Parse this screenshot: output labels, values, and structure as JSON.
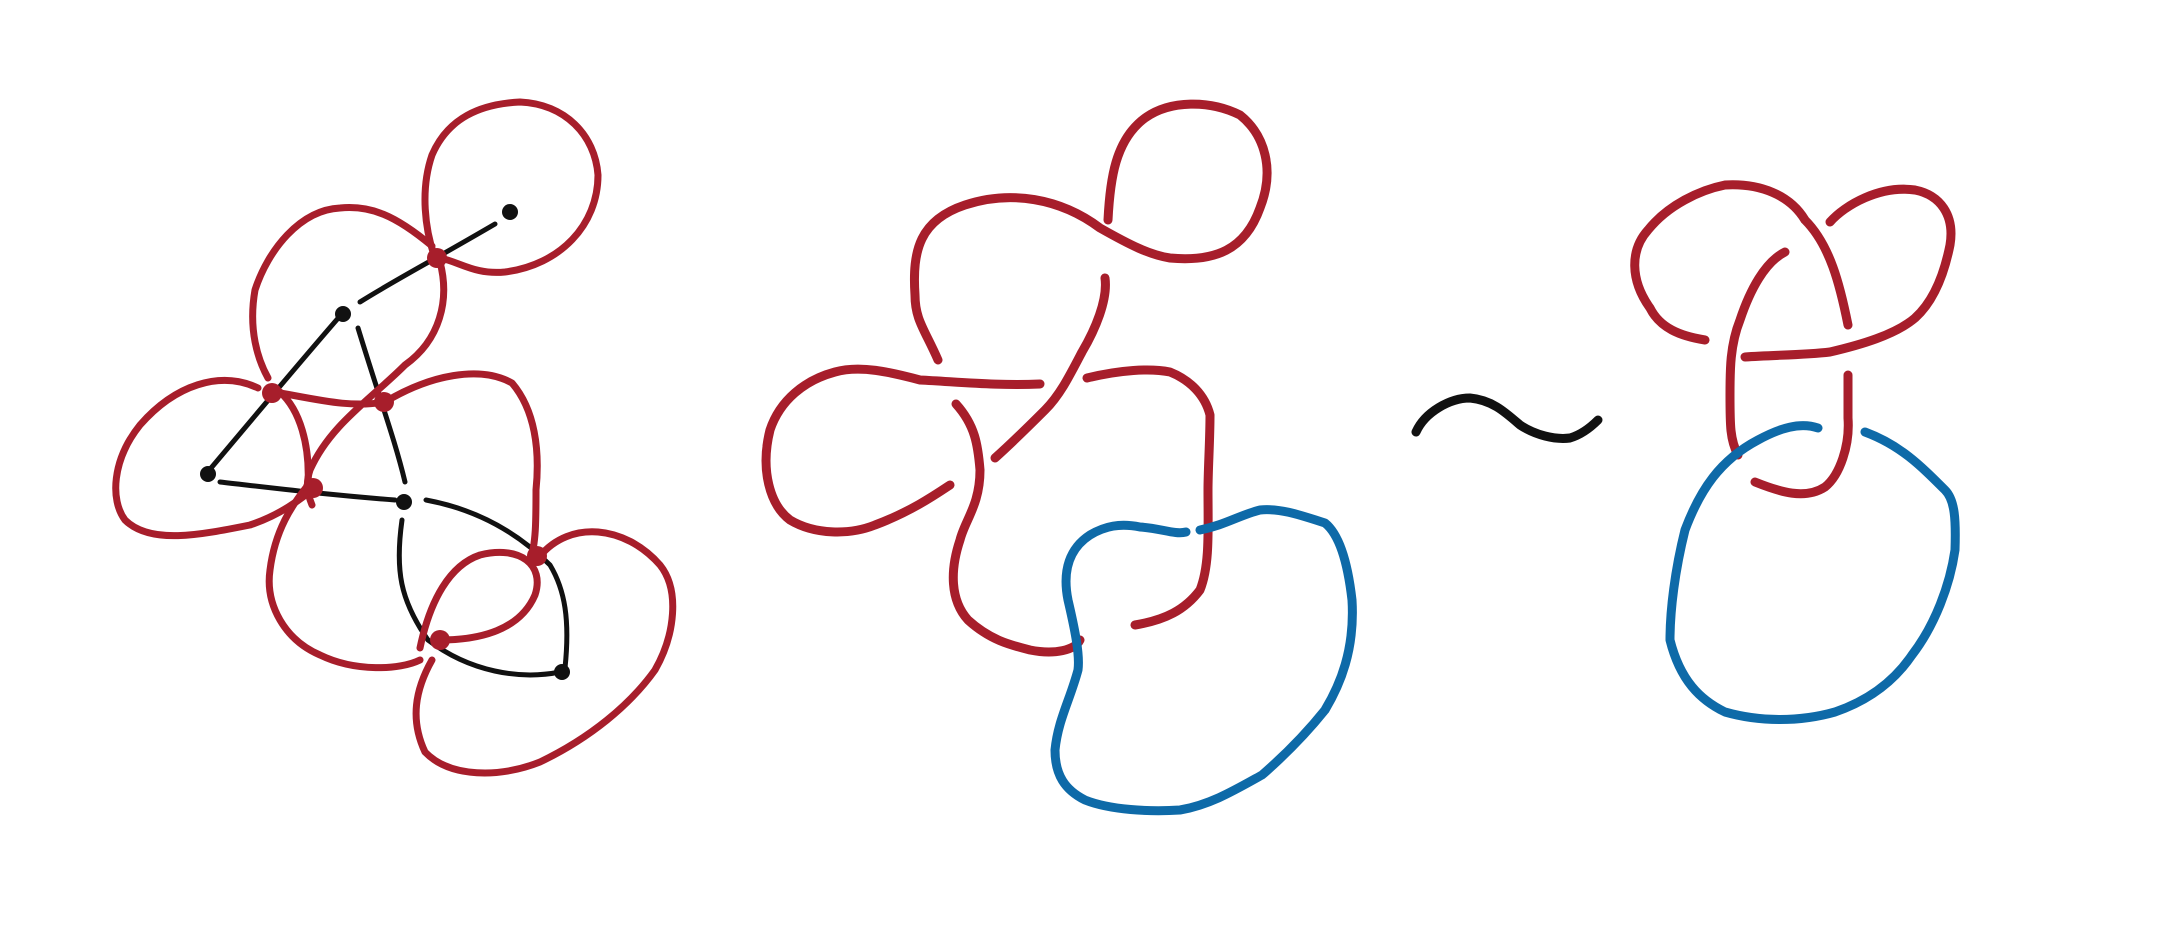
{
  "colors": {
    "background": "#ffffff",
    "graph": "#111111",
    "component_a": "#a71e2b",
    "component_b": "#0e6aa8"
  },
  "figure": {
    "panels": [
      "graph-with-link",
      "link-diagram",
      "equivalent-link-diagram"
    ],
    "relation_symbol": "~"
  }
}
